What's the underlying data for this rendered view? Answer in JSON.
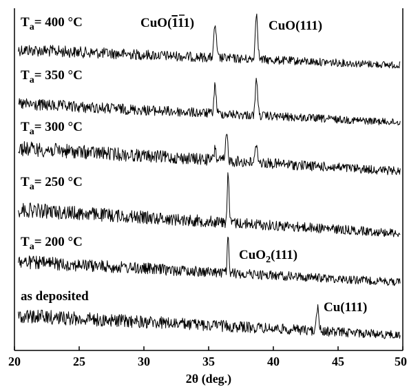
{
  "chart_data": {
    "type": "line",
    "xlabel": "2θ (deg.)",
    "xlim": [
      20,
      50
    ],
    "xticks": [
      20,
      25,
      30,
      35,
      40,
      45,
      50
    ],
    "y_axis_visible": false,
    "grid": false,
    "series": [
      {
        "id": "s400",
        "label": {
          "pre": "T",
          "sub": "a",
          "post": "= 400 °C"
        },
        "peaks": [
          {
            "x": 35.5,
            "h": 0.6,
            "w": 0.13
          },
          {
            "x": 38.7,
            "h": 0.85,
            "w": 0.13
          }
        ]
      },
      {
        "id": "s350",
        "label": {
          "pre": "T",
          "sub": "a",
          "post": "= 350 °C"
        },
        "peaks": [
          {
            "x": 35.5,
            "h": 0.52,
            "w": 0.12
          },
          {
            "x": 38.7,
            "h": 0.68,
            "w": 0.12
          }
        ]
      },
      {
        "id": "s300",
        "label": {
          "pre": "T",
          "sub": "a",
          "post": "= 300 °C"
        },
        "peaks": [
          {
            "x": 35.5,
            "h": 0.22,
            "w": 0.1
          },
          {
            "x": 36.4,
            "h": 0.45,
            "w": 0.12
          },
          {
            "x": 38.7,
            "h": 0.34,
            "w": 0.12
          }
        ]
      },
      {
        "id": "s250",
        "label": {
          "pre": "T",
          "sub": "a",
          "post": "= 250 °C"
        },
        "peaks": [
          {
            "x": 36.5,
            "h": 0.85,
            "w": 0.09
          }
        ]
      },
      {
        "id": "s200",
        "label": {
          "pre": "T",
          "sub": "a",
          "post": "= 200 °C"
        },
        "peaks": [
          {
            "x": 36.5,
            "h": 0.62,
            "w": 0.09
          }
        ]
      },
      {
        "id": "sdep",
        "label": {
          "pre": "as deposited",
          "sub": "",
          "post": ""
        },
        "peaks": [
          {
            "x": 43.4,
            "h": 0.42,
            "w": 0.14
          }
        ]
      }
    ],
    "annotations": [
      {
        "id": "cuo-111bar",
        "pre": "CuO(",
        "overline": "1",
        "post": "11)"
      },
      {
        "id": "cuo-111",
        "pre": "CuO(111)",
        "sub": "",
        "post": ""
      },
      {
        "id": "cuo2-111",
        "pre": "CuO",
        "sub": "2",
        "post": "(111)"
      },
      {
        "id": "cu-111",
        "pre": "Cu(111)",
        "sub": "",
        "post": ""
      }
    ]
  }
}
